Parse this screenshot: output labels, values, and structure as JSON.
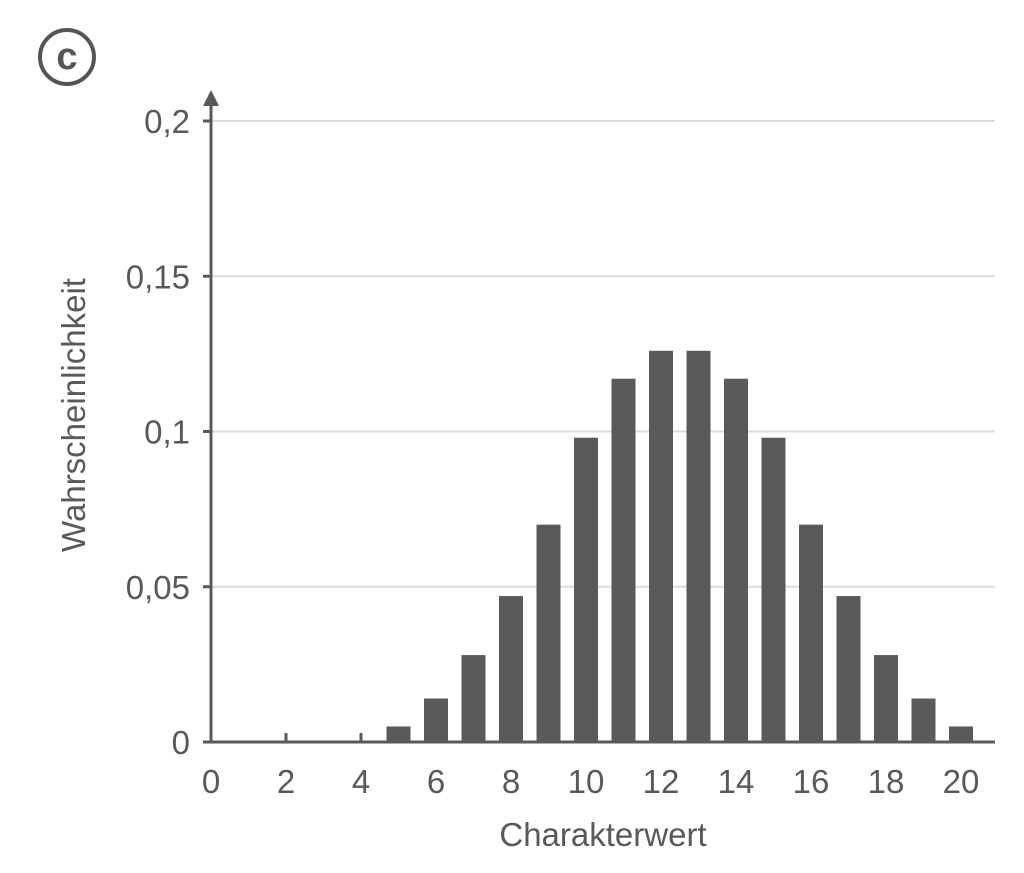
{
  "panel_label": "c",
  "chart_data": {
    "type": "bar",
    "title": "",
    "xlabel": "Charakterwert",
    "ylabel": "Wahrscheinlichkeit",
    "xlim": [
      0,
      20.5
    ],
    "ylim": [
      0,
      0.2
    ],
    "x_ticks": [
      0,
      2,
      4,
      6,
      8,
      10,
      12,
      14,
      16,
      18,
      20
    ],
    "y_ticks": [
      {
        "value": 0,
        "label": "0"
      },
      {
        "value": 0.05,
        "label": "0,05"
      },
      {
        "value": 0.1,
        "label": "0,1"
      },
      {
        "value": 0.15,
        "label": "0,15"
      },
      {
        "value": 0.2,
        "label": "0,2"
      }
    ],
    "grid": true,
    "bar_color": "#5a5a5a",
    "grid_color": "#dcdcdc",
    "axis_color": "#595959",
    "x": [
      5,
      6,
      7,
      8,
      9,
      10,
      11,
      12,
      13,
      14,
      15,
      16,
      17,
      18,
      19,
      20
    ],
    "values": [
      0.005,
      0.014,
      0.028,
      0.047,
      0.07,
      0.098,
      0.117,
      0.126,
      0.126,
      0.117,
      0.098,
      0.07,
      0.047,
      0.028,
      0.014,
      0.005
    ]
  }
}
